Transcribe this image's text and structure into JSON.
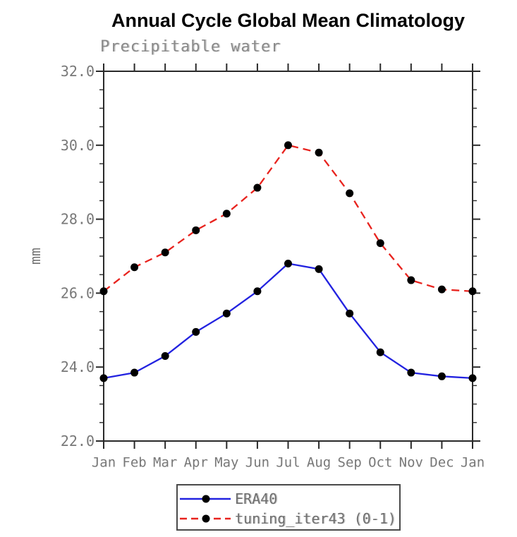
{
  "chart": {
    "title": "Annual Cycle Global Mean Climatology",
    "subtitle": "Precipitable water",
    "ylabel": "mm"
  },
  "chart_data": {
    "type": "line",
    "title": "Annual Cycle Global Mean Climatology",
    "subtitle": "Precipitable water",
    "xlabel": "",
    "ylabel": "mm",
    "categories": [
      "Jan",
      "Feb",
      "Mar",
      "Apr",
      "May",
      "Jun",
      "Jul",
      "Aug",
      "Sep",
      "Oct",
      "Nov",
      "Dec",
      "Jan"
    ],
    "series": [
      {
        "name": "ERA40",
        "color": "#2222e0",
        "line_style": "solid",
        "marker": "filled-circle",
        "marker_color": "#000000",
        "values": [
          23.7,
          23.85,
          24.3,
          24.95,
          25.45,
          26.05,
          26.8,
          26.65,
          25.45,
          24.4,
          23.85,
          23.75,
          23.7
        ]
      },
      {
        "name": "tuning_iter43 (0-1)",
        "color": "#e8231e",
        "line_style": "dashed",
        "marker": "filled-circle",
        "marker_color": "#000000",
        "values": [
          26.05,
          26.7,
          27.1,
          27.7,
          28.15,
          28.85,
          30.0,
          29.8,
          28.7,
          27.35,
          26.35,
          26.1,
          26.05
        ]
      }
    ],
    "ylim": [
      22.0,
      32.0
    ],
    "yticks": [
      22.0,
      24.0,
      26.0,
      28.0,
      30.0,
      32.0
    ],
    "ytick_labels": [
      "22.0",
      "24.0",
      "26.0",
      "28.0",
      "30.0",
      "32.0"
    ],
    "y_minor_step": 0.5,
    "grid": false,
    "legend_position": "bottom"
  },
  "style": {
    "axis_color": "#2a2a2a",
    "label_color": "#787878",
    "era40_color": "#2222e0",
    "tuning_color": "#e8231e",
    "marker_color": "#000000"
  }
}
